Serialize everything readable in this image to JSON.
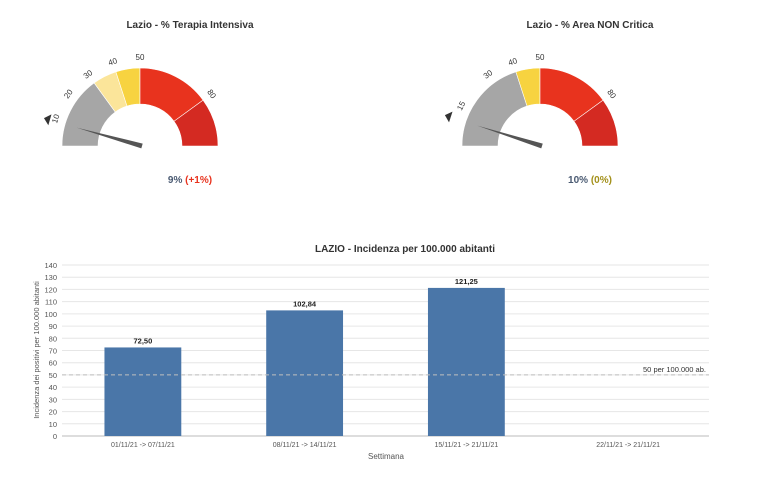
{
  "gauges": [
    {
      "title": "Lazio - % Terapia Intensiva",
      "value": 9,
      "value_text": "9%",
      "delta_text": "(+1%)",
      "delta_kind": "up",
      "ticks": [
        "10",
        "20",
        "30",
        "40",
        "50",
        "80"
      ],
      "tick_values": [
        10,
        20,
        30,
        40,
        50,
        80
      ],
      "bands": [
        {
          "from": 0,
          "to": 30,
          "color": "#a6a6a6"
        },
        {
          "from": 30,
          "to": 40,
          "color": "#fbe59a"
        },
        {
          "from": 40,
          "to": 50,
          "color": "#f7d340"
        },
        {
          "from": 50,
          "to": 80,
          "color": "#e8331e"
        },
        {
          "from": 80,
          "to": 100,
          "color": "#d42a22"
        }
      ]
    },
    {
      "title": "Lazio - % Area NON Critica",
      "value": 10,
      "value_text": "10%",
      "delta_text": "(0%)",
      "delta_kind": "zero",
      "ticks": [
        "15",
        "30",
        "40",
        "50",
        "80"
      ],
      "tick_values": [
        15,
        30,
        40,
        50,
        80
      ],
      "bands": [
        {
          "from": 0,
          "to": 40,
          "color": "#a6a6a6"
        },
        {
          "from": 40,
          "to": 50,
          "color": "#f7d340"
        },
        {
          "from": 50,
          "to": 80,
          "color": "#e8331e"
        },
        {
          "from": 80,
          "to": 100,
          "color": "#d42a22"
        }
      ]
    }
  ],
  "chart_data": {
    "type": "bar",
    "title": "LAZIO - Incidenza per 100.000 abitanti",
    "xlabel": "Settimana",
    "ylabel": "Incidenza dei positivi per 100.000 abitanti",
    "categories": [
      "01/11/21 -> 07/11/21",
      "08/11/21 -> 14/11/21",
      "15/11/21 -> 21/11/21",
      "22/11/21 -> 21/11/21"
    ],
    "values": [
      72.5,
      102.84,
      121.25,
      null
    ],
    "value_labels": [
      "72,50",
      "102,84",
      "121,25",
      ""
    ],
    "ylim": [
      0,
      140
    ],
    "yticks": [
      0,
      10,
      20,
      30,
      40,
      50,
      60,
      70,
      80,
      90,
      100,
      110,
      120,
      130,
      140
    ],
    "reference_line": {
      "value": 50,
      "label": "50 per 100.000 ab."
    },
    "bar_color": "#4a76a8",
    "grid": true
  }
}
